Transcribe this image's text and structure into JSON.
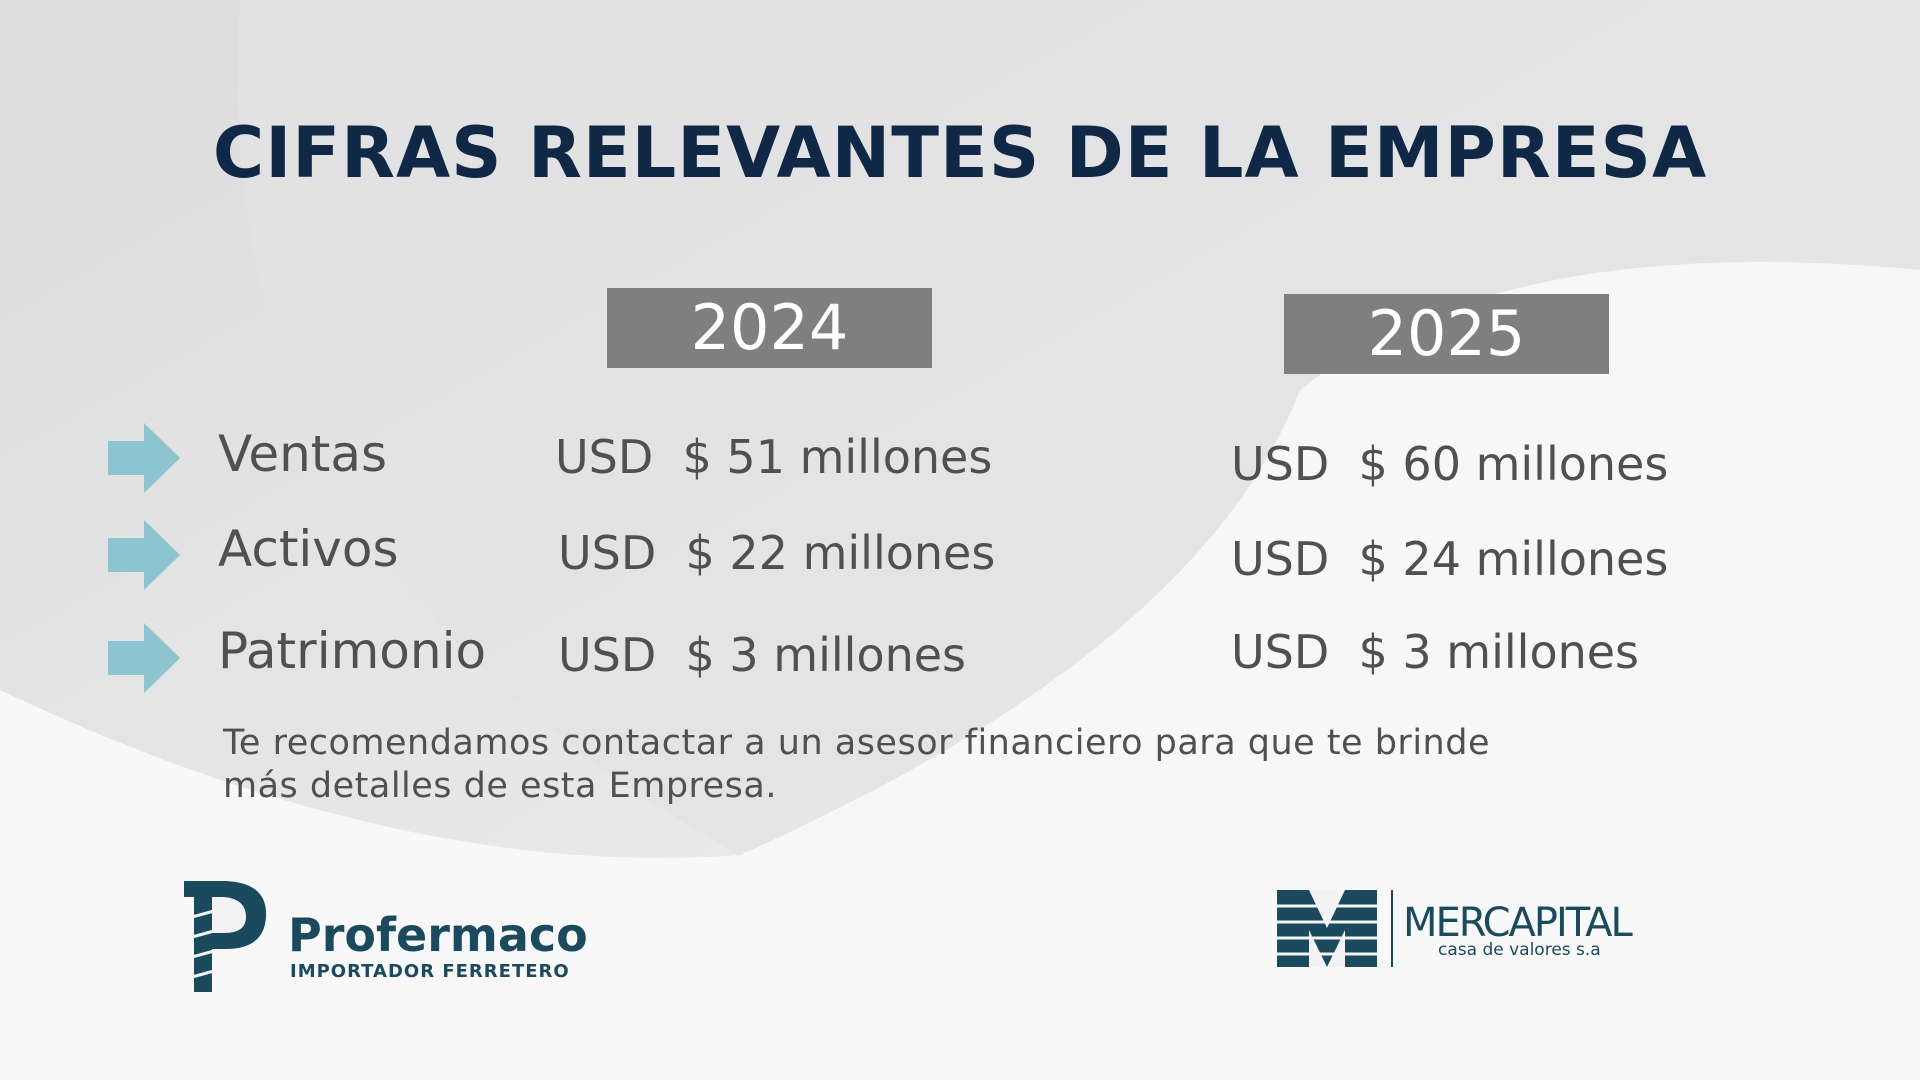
{
  "title": "CIFRAS RELEVANTES DE LA EMPRESA",
  "years": [
    "2024",
    "2025"
  ],
  "rows": [
    {
      "label": "Ventas",
      "values": [
        "USD  $ 51 millones",
        "USD  $ 60 millones"
      ]
    },
    {
      "label": "Activos",
      "values": [
        "USD  $ 22 millones",
        "USD  $ 24 millones"
      ]
    },
    {
      "label": "Patrimonio",
      "values": [
        "USD  $ 3 millones",
        "USD  $ 3 millones"
      ]
    }
  ],
  "note": [
    "Te recomendamos contactar a un asesor financiero para que te brinde",
    "más detalles de esta Empresa."
  ],
  "logos": {
    "left": {
      "name": "Profermaco",
      "tagline": "IMPORTADOR FERRETERO"
    },
    "right": {
      "name": "MERCAPITAL",
      "tagline": "casa de valores s.a"
    }
  }
}
